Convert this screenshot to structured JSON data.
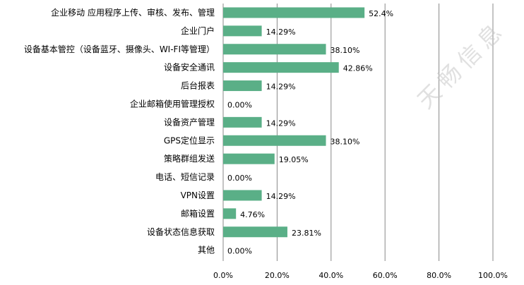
{
  "chart_data": {
    "type": "bar",
    "orientation": "horizontal",
    "categories": [
      "企业移动 应用程序上传、审核、发布、管理",
      "企业门户",
      "设备基本管控（设备蓝牙、摄像头、WI-FI等管理）",
      "设备安全通讯",
      "后台报表",
      "企业邮箱使用管理授权",
      "设备资产管理",
      "GPS定位显示",
      "策略群组发送",
      "电话、短信记录",
      "VPN设置",
      "邮箱设置",
      "设备状态信息获取",
      "其他"
    ],
    "values": [
      52.4,
      14.29,
      38.1,
      42.86,
      14.29,
      0.0,
      14.29,
      38.1,
      19.05,
      0.0,
      14.29,
      4.76,
      23.81,
      0.0
    ],
    "value_labels": [
      "52.4%",
      "14.29%",
      "38.10%",
      "42.86%",
      "14.29%",
      "0.00%",
      "14.29%",
      "38.10%",
      "19.05%",
      "0.00%",
      "14.29%",
      "4.76%",
      "23.81%",
      "0.00%"
    ],
    "xlim": [
      0,
      100
    ],
    "x_ticks": [
      "0.0%",
      "20.0%",
      "40.0%",
      "60.0%",
      "80.0%",
      "100.0%"
    ],
    "grid": "vertical",
    "colors": {
      "bar": "#5aaf87",
      "grid": "#888888",
      "axis": "#888888"
    }
  },
  "watermark": "天畅信息"
}
